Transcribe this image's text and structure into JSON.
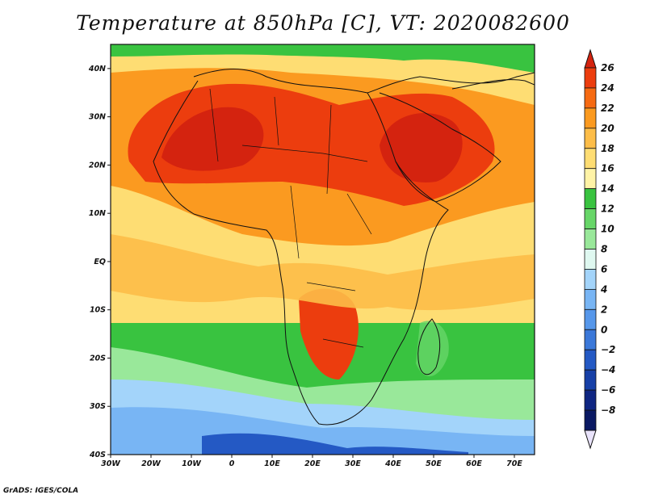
{
  "title": "Temperature at 850hPa [C], VT: 2020082600",
  "credit": "GrADS: IGES/COLA",
  "map": {
    "lon_range": [
      -30,
      75
    ],
    "lat_range": [
      -40,
      45
    ],
    "lon_ticks": [
      "30W",
      "20W",
      "10W",
      "0",
      "10E",
      "20E",
      "30E",
      "40E",
      "50E",
      "60E",
      "70E"
    ],
    "lat_ticks": [
      "40N",
      "30N",
      "20N",
      "10N",
      "EQ",
      "10S",
      "20S",
      "30S",
      "40S"
    ]
  },
  "colorbar": {
    "labels": [
      "26",
      "24",
      "22",
      "20",
      "18",
      "16",
      "14",
      "12",
      "10",
      "8",
      "6",
      "4",
      "2",
      "0",
      "-2",
      "-4",
      "-6",
      "-8"
    ],
    "colors": [
      "#d4230f",
      "#ec3d0e",
      "#f66a12",
      "#fb9a20",
      "#fdbd48",
      "#fedd73",
      "#fff3a6",
      "#39c340",
      "#67d668",
      "#99e89a",
      "#dff8f0",
      "#a3d4fa",
      "#78b5f4",
      "#5697ea",
      "#3b78d9",
      "#2459c4",
      "#1740a7",
      "#0f2682",
      "#0a1963",
      "#e9e3fb"
    ]
  }
}
